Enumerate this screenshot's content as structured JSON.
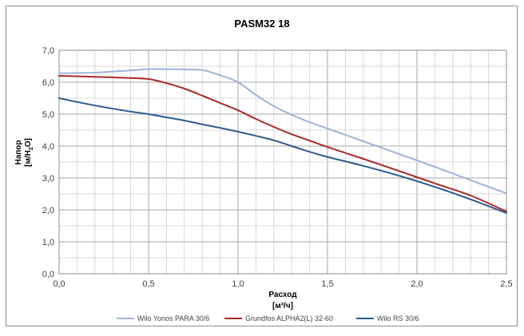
{
  "chart_data": {
    "type": "line",
    "title": "PASM32 18",
    "xlabel": "Расход",
    "xunit": "[м³/ч]",
    "ylabel": "Напор",
    "yunit_pre": "[м/H",
    "yunit_sub": "2",
    "yunit_post": "O]",
    "xlim": [
      0,
      2.5
    ],
    "ylim": [
      0,
      7
    ],
    "x_ticks": [
      "0,0",
      "0,5",
      "1,0",
      "1,5",
      "2,0",
      "2,5"
    ],
    "y_ticks": [
      "0,0",
      "1,0",
      "2,0",
      "3,0",
      "4,0",
      "5,0",
      "6,0",
      "7,0"
    ],
    "grid": true,
    "legend_position": "bottom",
    "series": [
      {
        "name": "Wilo Yonos PARA 30/6",
        "color": "#9fb3d6",
        "points": [
          [
            0,
            6.28
          ],
          [
            0.2,
            6.3
          ],
          [
            0.4,
            6.37
          ],
          [
            0.5,
            6.41
          ],
          [
            0.6,
            6.41
          ],
          [
            0.7,
            6.4
          ],
          [
            0.8,
            6.38
          ],
          [
            0.9,
            6.22
          ],
          [
            1.0,
            6.0
          ],
          [
            1.1,
            5.6
          ],
          [
            1.2,
            5.25
          ],
          [
            1.3,
            4.98
          ],
          [
            1.4,
            4.75
          ],
          [
            1.5,
            4.55
          ],
          [
            1.7,
            4.15
          ],
          [
            1.9,
            3.75
          ],
          [
            2.1,
            3.35
          ],
          [
            2.3,
            2.93
          ],
          [
            2.5,
            2.52
          ]
        ]
      },
      {
        "name": "Grundfos ALPHA2(L) 32-60",
        "color": "#a52a2a",
        "points": [
          [
            0,
            6.2
          ],
          [
            0.2,
            6.17
          ],
          [
            0.4,
            6.13
          ],
          [
            0.5,
            6.1
          ],
          [
            0.6,
            5.97
          ],
          [
            0.7,
            5.8
          ],
          [
            0.8,
            5.58
          ],
          [
            0.9,
            5.35
          ],
          [
            1.0,
            5.12
          ],
          [
            1.1,
            4.85
          ],
          [
            1.2,
            4.6
          ],
          [
            1.3,
            4.37
          ],
          [
            1.4,
            4.17
          ],
          [
            1.5,
            3.97
          ],
          [
            1.7,
            3.6
          ],
          [
            1.9,
            3.22
          ],
          [
            2.1,
            2.83
          ],
          [
            2.3,
            2.45
          ],
          [
            2.5,
            1.95
          ]
        ]
      },
      {
        "name": "Wilo RS 30/6",
        "color": "#2c5a8c",
        "points": [
          [
            0,
            5.5
          ],
          [
            0.1,
            5.38
          ],
          [
            0.2,
            5.27
          ],
          [
            0.3,
            5.17
          ],
          [
            0.4,
            5.08
          ],
          [
            0.5,
            5.0
          ],
          [
            0.6,
            4.9
          ],
          [
            0.7,
            4.8
          ],
          [
            0.8,
            4.68
          ],
          [
            0.9,
            4.57
          ],
          [
            1.0,
            4.45
          ],
          [
            1.1,
            4.32
          ],
          [
            1.2,
            4.18
          ],
          [
            1.3,
            4.0
          ],
          [
            1.4,
            3.82
          ],
          [
            1.5,
            3.66
          ],
          [
            1.7,
            3.38
          ],
          [
            1.9,
            3.07
          ],
          [
            2.1,
            2.72
          ],
          [
            2.3,
            2.33
          ],
          [
            2.5,
            1.9
          ]
        ]
      }
    ]
  }
}
